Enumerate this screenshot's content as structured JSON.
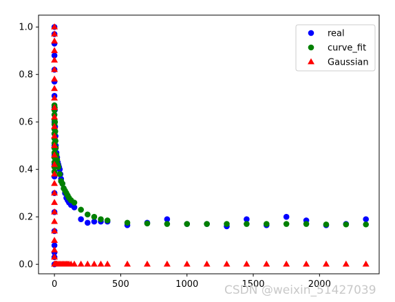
{
  "chart_data": {
    "type": "scatter",
    "xlim": [
      -120,
      2450
    ],
    "ylim": [
      -0.04,
      1.05
    ],
    "xticks": [
      0,
      500,
      1000,
      1500,
      2000
    ],
    "yticks": [
      0.0,
      0.2,
      0.4,
      0.6,
      0.8,
      1.0
    ],
    "xtick_labels": [
      "0",
      "500",
      "1000",
      "1500",
      "2000"
    ],
    "ytick_labels": [
      "0.0",
      "0.2",
      "0.4",
      "0.6",
      "0.8",
      "1.0"
    ],
    "legend_position": "top-right",
    "grid": false,
    "series": [
      {
        "name": "real",
        "marker": "circle",
        "color": "#0000ff",
        "points": [
          [
            0,
            1.0
          ],
          [
            0,
            0.97
          ],
          [
            0,
            0.93
          ],
          [
            0,
            0.88
          ],
          [
            0,
            0.82
          ],
          [
            0,
            0.77
          ],
          [
            0,
            0.71
          ],
          [
            0,
            0.66
          ],
          [
            0,
            0.6
          ],
          [
            0,
            0.55
          ],
          [
            0,
            0.5
          ],
          [
            0,
            0.46
          ],
          [
            0,
            0.42
          ],
          [
            0,
            0.37
          ],
          [
            0,
            0.3
          ],
          [
            0,
            0.22
          ],
          [
            0,
            0.14
          ],
          [
            0,
            0.08
          ],
          [
            0,
            0.05
          ],
          [
            0,
            0.03
          ],
          [
            0,
            0.0
          ],
          [
            3,
            0.65
          ],
          [
            5,
            0.58
          ],
          [
            8,
            0.54
          ],
          [
            10,
            0.5
          ],
          [
            15,
            0.47
          ],
          [
            20,
            0.45
          ],
          [
            25,
            0.43
          ],
          [
            30,
            0.42
          ],
          [
            35,
            0.41
          ],
          [
            40,
            0.4
          ],
          [
            45,
            0.38
          ],
          [
            50,
            0.36
          ],
          [
            60,
            0.34
          ],
          [
            70,
            0.32
          ],
          [
            80,
            0.3
          ],
          [
            90,
            0.28
          ],
          [
            100,
            0.27
          ],
          [
            110,
            0.26
          ],
          [
            125,
            0.25
          ],
          [
            150,
            0.24
          ],
          [
            200,
            0.19
          ],
          [
            250,
            0.175
          ],
          [
            300,
            0.18
          ],
          [
            350,
            0.18
          ],
          [
            400,
            0.18
          ],
          [
            550,
            0.165
          ],
          [
            700,
            0.175
          ],
          [
            850,
            0.19
          ],
          [
            1000,
            0.17
          ],
          [
            1150,
            0.17
          ],
          [
            1300,
            0.16
          ],
          [
            1450,
            0.19
          ],
          [
            1600,
            0.165
          ],
          [
            1750,
            0.2
          ],
          [
            1900,
            0.185
          ],
          [
            2050,
            0.165
          ],
          [
            2200,
            0.17
          ],
          [
            2350,
            0.19
          ]
        ]
      },
      {
        "name": "curve_fit",
        "marker": "circle",
        "color": "#008000",
        "points": [
          [
            0,
            0.67
          ],
          [
            0,
            0.65
          ],
          [
            0,
            0.63
          ],
          [
            0,
            0.61
          ],
          [
            0,
            0.59
          ],
          [
            0,
            0.57
          ],
          [
            0,
            0.55
          ],
          [
            0,
            0.53
          ],
          [
            0,
            0.51
          ],
          [
            0,
            0.49
          ],
          [
            0,
            0.47
          ],
          [
            0,
            0.45
          ],
          [
            0,
            0.43
          ],
          [
            0,
            0.41
          ],
          [
            0,
            0.39
          ],
          [
            2,
            0.66
          ],
          [
            4,
            0.6
          ],
          [
            6,
            0.56
          ],
          [
            8,
            0.52
          ],
          [
            10,
            0.49
          ],
          [
            15,
            0.46
          ],
          [
            20,
            0.44
          ],
          [
            25,
            0.42
          ],
          [
            30,
            0.41
          ],
          [
            40,
            0.38
          ],
          [
            50,
            0.35
          ],
          [
            60,
            0.34
          ],
          [
            70,
            0.32
          ],
          [
            80,
            0.31
          ],
          [
            90,
            0.3
          ],
          [
            100,
            0.29
          ],
          [
            110,
            0.28
          ],
          [
            125,
            0.27
          ],
          [
            150,
            0.26
          ],
          [
            200,
            0.23
          ],
          [
            250,
            0.21
          ],
          [
            300,
            0.2
          ],
          [
            350,
            0.19
          ],
          [
            400,
            0.185
          ],
          [
            550,
            0.175
          ],
          [
            700,
            0.172
          ],
          [
            850,
            0.17
          ],
          [
            1000,
            0.17
          ],
          [
            1150,
            0.17
          ],
          [
            1300,
            0.17
          ],
          [
            1450,
            0.17
          ],
          [
            1600,
            0.17
          ],
          [
            1750,
            0.17
          ],
          [
            1900,
            0.17
          ],
          [
            2050,
            0.168
          ],
          [
            2200,
            0.168
          ],
          [
            2350,
            0.168
          ]
        ]
      },
      {
        "name": "Gaussian",
        "marker": "triangle",
        "color": "#ff0000",
        "points": [
          [
            0,
            1.0
          ],
          [
            0,
            0.97
          ],
          [
            0,
            0.94
          ],
          [
            0,
            0.9
          ],
          [
            0,
            0.86
          ],
          [
            0,
            0.82
          ],
          [
            0,
            0.78
          ],
          [
            0,
            0.74
          ],
          [
            0,
            0.7
          ],
          [
            0,
            0.66
          ],
          [
            0,
            0.62
          ],
          [
            0,
            0.58
          ],
          [
            0,
            0.54
          ],
          [
            0,
            0.5
          ],
          [
            0,
            0.46
          ],
          [
            0,
            0.42
          ],
          [
            0,
            0.38
          ],
          [
            0,
            0.34
          ],
          [
            0,
            0.3
          ],
          [
            0,
            0.26
          ],
          [
            0,
            0.22
          ],
          [
            0,
            0.18
          ],
          [
            0,
            0.14
          ],
          [
            0,
            0.1
          ],
          [
            0,
            0.06
          ],
          [
            0,
            0.03
          ],
          [
            0,
            0.0
          ],
          [
            5,
            0.0
          ],
          [
            10,
            0.0
          ],
          [
            15,
            0.0
          ],
          [
            20,
            0.0
          ],
          [
            30,
            0.0
          ],
          [
            40,
            0.0
          ],
          [
            50,
            0.0
          ],
          [
            60,
            0.0
          ],
          [
            70,
            0.0
          ],
          [
            80,
            0.0
          ],
          [
            90,
            0.0
          ],
          [
            100,
            0.0
          ],
          [
            110,
            0.0
          ],
          [
            125,
            0.0
          ],
          [
            150,
            0.0
          ],
          [
            200,
            0.0
          ],
          [
            250,
            0.0
          ],
          [
            300,
            0.0
          ],
          [
            350,
            0.0
          ],
          [
            400,
            0.0
          ],
          [
            550,
            0.0
          ],
          [
            700,
            0.0
          ],
          [
            850,
            0.0
          ],
          [
            1000,
            0.0
          ],
          [
            1150,
            0.0
          ],
          [
            1300,
            0.0
          ],
          [
            1450,
            0.0
          ],
          [
            1600,
            0.0
          ],
          [
            1750,
            0.0
          ],
          [
            1900,
            0.0
          ],
          [
            2050,
            0.0
          ],
          [
            2200,
            0.0
          ],
          [
            2350,
            0.0
          ]
        ]
      }
    ]
  },
  "watermark": "CSDN @weixin_51427039"
}
